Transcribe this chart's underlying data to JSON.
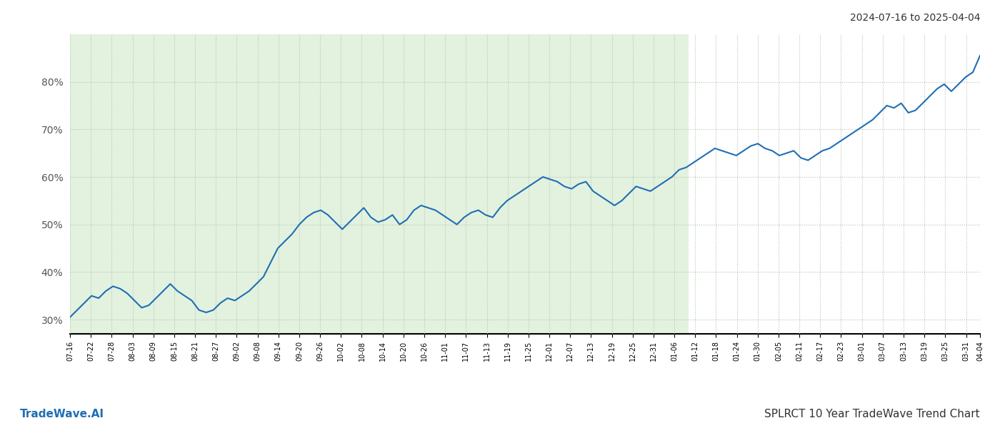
{
  "title_top_right": "2024-07-16 to 2025-04-04",
  "title_bottom_right": "SPLRCT 10 Year TradeWave Trend Chart",
  "title_bottom_left": "TradeWave.AI",
  "line_color": "#1f6eb5",
  "line_width": 1.5,
  "bg_color": "#ffffff",
  "shaded_region_color": "#c8e6c0",
  "shaded_region_alpha": 0.5,
  "grid_color": "#b0c4b0",
  "grid_style": ":",
  "ylim": [
    27,
    90
  ],
  "yticks": [
    30,
    40,
    50,
    60,
    70,
    80
  ],
  "shaded_start": "2024-07-16",
  "shaded_end": "2025-01-10",
  "x_dates": [
    "2024-07-16",
    "2024-07-22",
    "2024-07-28",
    "2024-08-03",
    "2024-08-09",
    "2024-08-15",
    "2024-08-21",
    "2024-08-27",
    "2024-09-02",
    "2024-09-08",
    "2024-09-14",
    "2024-09-20",
    "2024-09-26",
    "2024-10-02",
    "2024-10-08",
    "2024-10-14",
    "2024-10-20",
    "2024-10-26",
    "2024-11-01",
    "2024-11-07",
    "2024-11-13",
    "2024-11-19",
    "2024-11-25",
    "2024-12-01",
    "2024-12-07",
    "2024-12-13",
    "2024-12-19",
    "2024-12-25",
    "2024-12-31",
    "2025-01-06",
    "2025-01-12",
    "2025-01-18",
    "2025-01-24",
    "2025-01-30",
    "2025-02-05",
    "2025-02-11",
    "2025-02-17",
    "2025-02-23",
    "2025-03-01",
    "2025-03-07",
    "2025-03-13",
    "2025-03-19",
    "2025-03-25",
    "2025-03-31",
    "2025-04-04"
  ],
  "x_tick_labels": [
    "07-16",
    "07-22",
    "07-28",
    "08-03",
    "08-09",
    "08-15",
    "08-21",
    "08-27",
    "09-02",
    "09-08",
    "09-14",
    "09-20",
    "09-26",
    "10-02",
    "10-08",
    "10-14",
    "10-20",
    "10-26",
    "11-01",
    "11-07",
    "11-13",
    "11-19",
    "11-25",
    "12-01",
    "12-07",
    "12-13",
    "12-19",
    "12-25",
    "12-31",
    "01-06",
    "01-12",
    "01-18",
    "01-24",
    "01-30",
    "02-05",
    "02-11",
    "02-17",
    "02-23",
    "03-01",
    "03-07",
    "03-13",
    "03-19",
    "03-25",
    "03-31",
    "04-04"
  ],
  "values": [
    30.5,
    32.0,
    33.5,
    35.0,
    34.5,
    36.0,
    37.0,
    36.5,
    35.5,
    34.0,
    32.5,
    33.0,
    34.5,
    36.0,
    37.5,
    36.0,
    35.0,
    34.0,
    32.0,
    31.5,
    32.0,
    33.5,
    34.5,
    34.0,
    35.0,
    36.0,
    37.5,
    39.0,
    42.0,
    45.0,
    46.5,
    48.0,
    50.0,
    51.5,
    52.5,
    53.0,
    52.0,
    50.5,
    49.0,
    50.5,
    52.0,
    53.5,
    51.5,
    50.5,
    51.0,
    52.0,
    50.0,
    51.0,
    53.0,
    54.0,
    53.5,
    53.0,
    52.0,
    51.0,
    50.0,
    51.5,
    52.5,
    53.0,
    52.0,
    51.5,
    53.5,
    55.0,
    56.0,
    57.0,
    58.0,
    59.0,
    60.0,
    59.5,
    59.0,
    58.0,
    57.5,
    58.5,
    59.0,
    57.0,
    56.0,
    55.0,
    54.0,
    55.0,
    56.5,
    58.0,
    57.5,
    57.0,
    58.0,
    59.0,
    60.0,
    61.5,
    62.0,
    63.0,
    64.0,
    65.0,
    66.0,
    65.5,
    65.0,
    64.5,
    65.5,
    66.5,
    67.0,
    66.0,
    65.5,
    64.5,
    65.0,
    65.5,
    64.0,
    63.5,
    64.5,
    65.5,
    66.0,
    67.0,
    68.0,
    69.0,
    70.0,
    71.0,
    72.0,
    73.5,
    75.0,
    74.5,
    75.5,
    73.5,
    74.0,
    75.5,
    77.0,
    78.5,
    79.5,
    78.0,
    79.5,
    81.0,
    82.0,
    85.5
  ]
}
